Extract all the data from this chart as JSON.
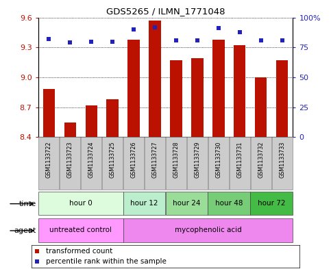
{
  "title": "GDS5265 / ILMN_1771048",
  "samples": [
    "GSM1133722",
    "GSM1133723",
    "GSM1133724",
    "GSM1133725",
    "GSM1133726",
    "GSM1133727",
    "GSM1133728",
    "GSM1133729",
    "GSM1133730",
    "GSM1133731",
    "GSM1133732",
    "GSM1133733"
  ],
  "transformed_counts": [
    8.88,
    8.55,
    8.72,
    8.78,
    9.38,
    9.57,
    9.17,
    9.19,
    9.38,
    9.32,
    9.0,
    9.17
  ],
  "percentile_ranks": [
    82,
    79,
    80,
    80,
    90,
    92,
    81,
    81,
    91,
    88,
    81,
    81
  ],
  "ylim_left": [
    8.4,
    9.6
  ],
  "ylim_right": [
    0,
    100
  ],
  "yticks_left": [
    8.4,
    8.7,
    9.0,
    9.3,
    9.6
  ],
  "yticks_right": [
    0,
    25,
    50,
    75,
    100
  ],
  "ytick_labels_right": [
    "0",
    "25",
    "50",
    "75",
    "100%"
  ],
  "bar_color": "#bb1100",
  "dot_color": "#2222bb",
  "bar_bottom": 8.4,
  "time_groups": [
    {
      "label": "hour 0",
      "start": 0,
      "end": 4,
      "color": "#ddfcdd"
    },
    {
      "label": "hour 12",
      "start": 4,
      "end": 6,
      "color": "#bbeecc"
    },
    {
      "label": "hour 24",
      "start": 6,
      "end": 8,
      "color": "#99dd99"
    },
    {
      "label": "hour 48",
      "start": 8,
      "end": 10,
      "color": "#77cc77"
    },
    {
      "label": "hour 72",
      "start": 10,
      "end": 12,
      "color": "#44bb44"
    }
  ],
  "agent_groups": [
    {
      "label": "untreated control",
      "start": 0,
      "end": 4,
      "color": "#ff99ff"
    },
    {
      "label": "mycophenolic acid",
      "start": 4,
      "end": 12,
      "color": "#ee88ee"
    }
  ],
  "xtick_bg": "#cccccc",
  "legend_items": [
    {
      "label": "transformed count",
      "color": "#bb1100"
    },
    {
      "label": "percentile rank within the sample",
      "color": "#2222bb"
    }
  ]
}
